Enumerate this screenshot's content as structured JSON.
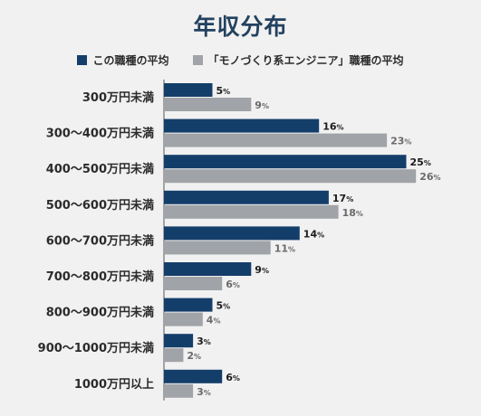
{
  "colors": {
    "primary": "#143e6a",
    "secondary": "#a0a3a7",
    "text": "#2b2b2b",
    "title": "#23415f",
    "background": "#f1f1f1"
  },
  "chart_data": {
    "type": "bar",
    "orientation": "horizontal",
    "title": "年収分布",
    "categories": [
      "300万円未満",
      "300〜400万円未満",
      "400〜500万円未満",
      "500〜600万円未満",
      "600〜700万円未満",
      "700〜800万円未満",
      "800〜900万円未満",
      "900〜1000万円未満",
      "1000万円以上"
    ],
    "unit": "%",
    "series": [
      {
        "name": "この職種の平均",
        "values": [
          5,
          16,
          25,
          17,
          14,
          9,
          5,
          3,
          6
        ]
      },
      {
        "name": "「モノづくり系エンジニア」職種の平均",
        "values": [
          9,
          23,
          26,
          18,
          11,
          6,
          4,
          2,
          3
        ]
      }
    ],
    "xlim": [
      0,
      26
    ],
    "grid": false,
    "legend": "top"
  }
}
